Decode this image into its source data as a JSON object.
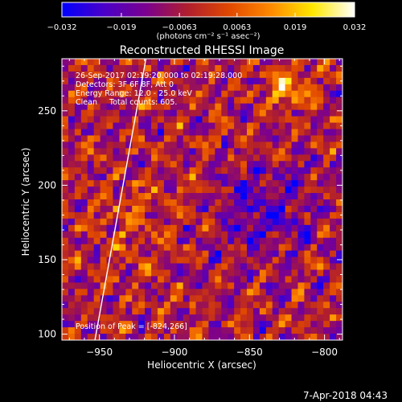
{
  "chart_data": {
    "type": "heatmap",
    "title": "Reconstructed RHESSI Image",
    "xlabel": "Heliocentric X (arcsec)",
    "ylabel": "Heliocentric Y (arcsec)",
    "xlim": [
      -975,
      -788
    ],
    "ylim": [
      96,
      285
    ],
    "x_ticks": [
      -950,
      -900,
      -850,
      -800
    ],
    "y_ticks": [
      100,
      150,
      200,
      250
    ],
    "x_tick_labels": [
      "−950",
      "−900",
      "−850",
      "−800"
    ],
    "y_tick_labels": [
      "100",
      "150",
      "200",
      "250"
    ],
    "grid": false,
    "colorbar": {
      "range": [
        -0.032,
        0.032
      ],
      "ticks": [
        -0.032,
        -0.019,
        -0.0063,
        0.0063,
        0.019,
        0.032
      ],
      "tick_labels": [
        "−0.032",
        "−0.019",
        "−0.0063",
        "0.0063",
        "0.019",
        "0.032"
      ],
      "unit_label": "(photons cm⁻² s⁻¹ asec⁻²)",
      "colormap_stops": [
        "#0000ff",
        "#4a00c8",
        "#7a0090",
        "#b01e2e",
        "#e04800",
        "#ff8a00",
        "#ffe800",
        "#ffffff"
      ]
    },
    "annotations": [
      "26-Sep-2017 02:19:20.000 to 02:19:28.000",
      "Detectors: 3F 6F 8F, Att 0",
      "Energy Range: 12.0 - 25.0 keV",
      "Clean     Total counts: 605.",
      "Position of Peak = [-824,266]"
    ],
    "peak": {
      "x": -824,
      "y": 266
    },
    "limb_line": {
      "points": [
        [
          -953,
          96
        ],
        [
          -919,
          285
        ]
      ],
      "color": "#ffffff"
    }
  },
  "footer": {
    "timestamp": "7-Apr-2018 04:43"
  }
}
